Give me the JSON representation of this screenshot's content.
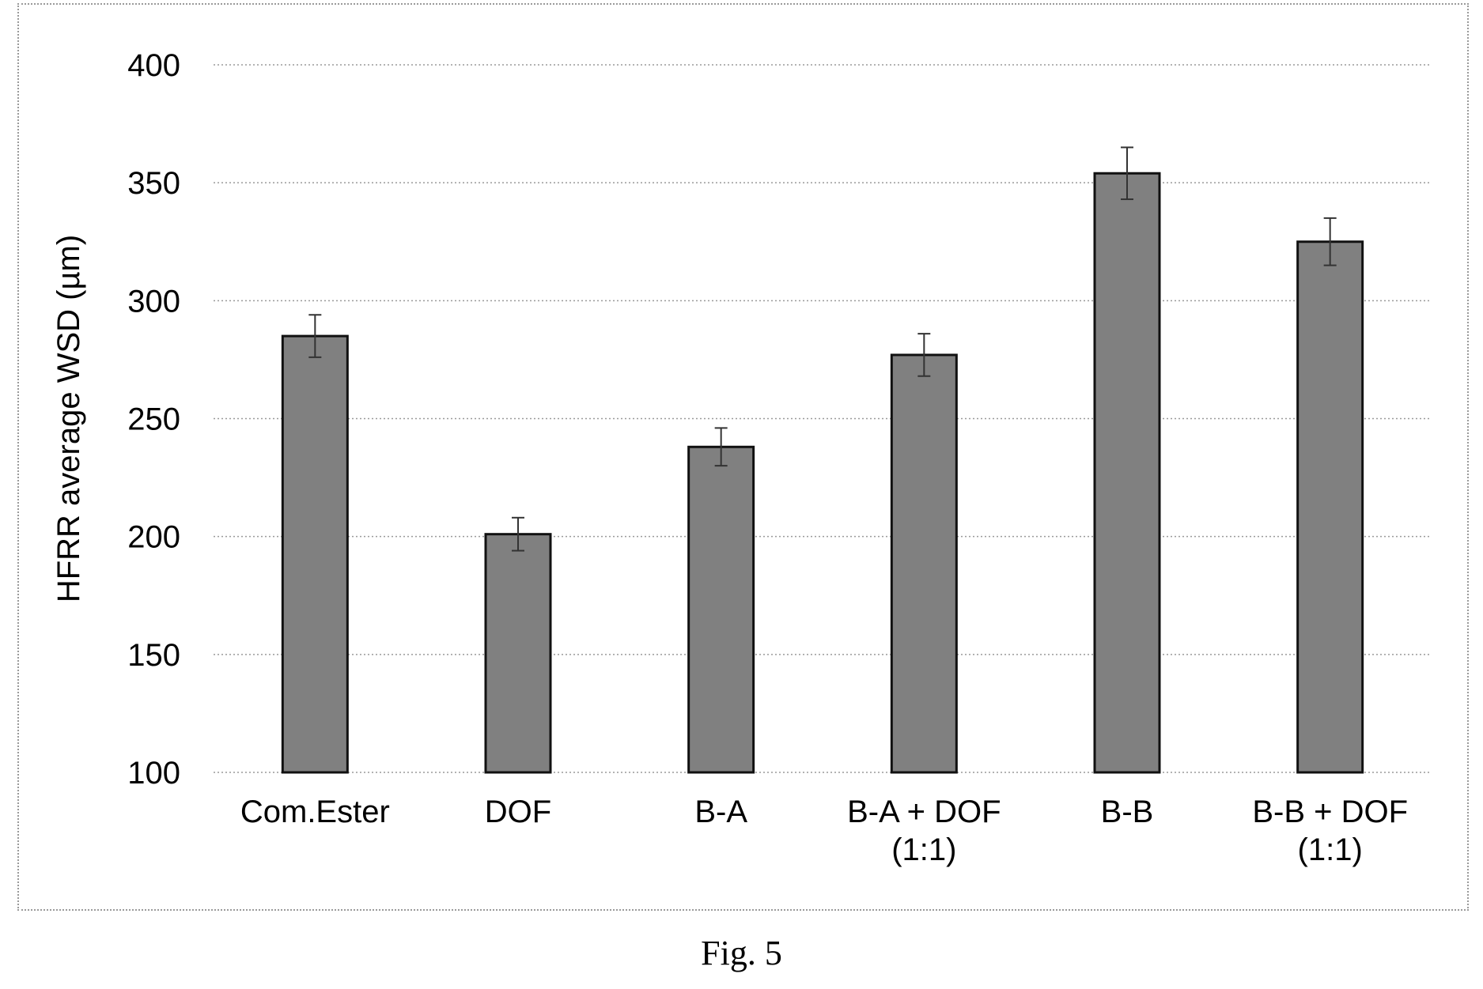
{
  "caption": "Fig. 5",
  "chart_data": {
    "type": "bar",
    "title": "",
    "xlabel": "",
    "ylabel": "HFRR average WSD (µm)",
    "ylim": [
      100,
      400
    ],
    "yticks": [
      100,
      150,
      200,
      250,
      300,
      350,
      400
    ],
    "grid": true,
    "categories": [
      [
        "Com.Ester"
      ],
      [
        "DOF"
      ],
      [
        "B-A"
      ],
      [
        "B-A + DOF",
        "(1:1)"
      ],
      [
        "B-B"
      ],
      [
        "B-B + DOF",
        "(1:1)"
      ]
    ],
    "values": [
      285,
      201,
      238,
      277,
      354,
      325
    ],
    "error": [
      9,
      7,
      8,
      9,
      11,
      10
    ],
    "colors": {
      "bar": "#808080",
      "bar_edge": "#111111",
      "grid": "#9a9a9a",
      "error_bar": "#333333"
    }
  }
}
